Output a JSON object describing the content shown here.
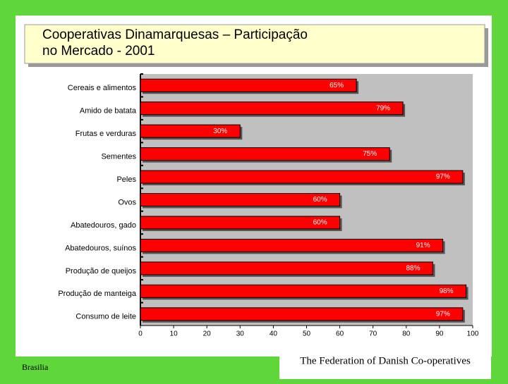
{
  "title": "Cooperativas Dinamarquesas – Participação no Mercado - 2001",
  "chart_data": {
    "type": "bar",
    "orientation": "horizontal",
    "categories": [
      "Cereais e alimentos",
      "Amido de batata",
      "Frutas e verduras",
      "Sementes",
      "Peles",
      "Ovos",
      "Abatedouros, gado",
      "Abatedouros, suínos",
      "Produção de queijos",
      "Produção de manteiga",
      "Consumo de leite"
    ],
    "values": [
      65,
      79,
      30,
      75,
      97,
      60,
      60,
      91,
      88,
      98,
      97
    ],
    "value_labels": [
      "65%",
      "79%",
      "30%",
      "75%",
      "97%",
      "60%",
      "60%",
      "91%",
      "88%",
      "98%",
      "97%"
    ],
    "color": "#ff0000",
    "xlim": [
      0,
      100
    ],
    "xticks": [
      0,
      10,
      20,
      30,
      40,
      50,
      60,
      70,
      80,
      90,
      100
    ],
    "grid": false
  },
  "footer": {
    "left": "Brasilia",
    "right": "The Federation of Danish Co-operatives"
  }
}
